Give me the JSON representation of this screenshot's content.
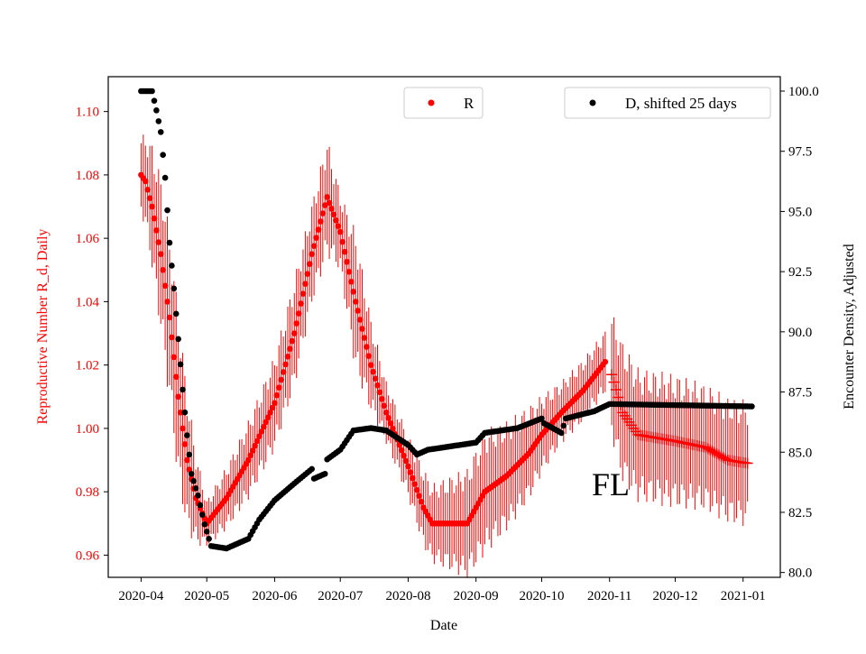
{
  "chart_data": {
    "type": "scatter",
    "title": "",
    "xlabel": "Date",
    "ylabel_left": "Reproductive Number R_d, Daily",
    "ylabel_right": "Encounter Density, Adjusted",
    "annotation": "FL",
    "x_ticks": [
      "2020-04",
      "2020-05",
      "2020-06",
      "2020-07",
      "2020-08",
      "2020-09",
      "2020-10",
      "2020-11",
      "2020-12",
      "2021-01"
    ],
    "y_left_ticks": [
      "0.96",
      "0.98",
      "1.00",
      "1.02",
      "1.04",
      "1.06",
      "1.08",
      "1.10"
    ],
    "y_right_ticks": [
      "80.0",
      "82.5",
      "85.0",
      "87.5",
      "90.0",
      "92.5",
      "95.0",
      "97.5",
      "100.0"
    ],
    "ylim_left": [
      0.953,
      1.111
    ],
    "ylim_right": [
      79.8,
      100.6
    ],
    "xlim": [
      "2020-03-17",
      "2021-01-18"
    ],
    "colors": {
      "R": "#ff0000",
      "D": "#000000",
      "left_axis": "#ff0000"
    },
    "legend": [
      {
        "label": "R",
        "color": "#ff0000",
        "placement": "top-center"
      },
      {
        "label": "D, shifted 25 days",
        "color": "#000000",
        "placement": "top-right"
      }
    ],
    "series": [
      {
        "name": "R",
        "axis": "left",
        "marker": "dot",
        "points": [
          [
            "2020-04-01",
            1.08,
            0.01
          ],
          [
            "2020-04-03",
            1.078,
            0.012
          ],
          [
            "2020-04-06",
            1.07,
            0.016
          ],
          [
            "2020-04-10",
            1.055,
            0.02
          ],
          [
            "2020-04-14",
            1.035,
            0.022
          ],
          [
            "2020-04-18",
            1.01,
            0.022
          ],
          [
            "2020-04-22",
            0.99,
            0.018
          ],
          [
            "2020-04-26",
            0.978,
            0.012
          ],
          [
            "2020-05-01",
            0.97,
            0.006
          ],
          [
            "2020-05-10",
            0.978,
            0.008
          ],
          [
            "2020-05-20",
            0.99,
            0.01
          ],
          [
            "2020-06-01",
            1.008,
            0.012
          ],
          [
            "2020-06-10",
            1.03,
            0.014
          ],
          [
            "2020-06-18",
            1.055,
            0.013
          ],
          [
            "2020-06-25",
            1.073,
            0.015
          ],
          [
            "2020-07-01",
            1.062,
            0.01
          ],
          [
            "2020-07-08",
            1.04,
            0.018
          ],
          [
            "2020-07-15",
            1.02,
            0.012
          ],
          [
            "2020-07-22",
            1.005,
            0.008
          ],
          [
            "2020-08-01",
            0.988,
            0.008
          ],
          [
            "2020-08-08",
            0.975,
            0.01
          ],
          [
            "2020-08-12",
            0.97,
            0.01
          ],
          [
            "2020-08-28",
            0.97,
            0.014
          ],
          [
            "2020-09-05",
            0.98,
            0.016
          ],
          [
            "2020-09-15",
            0.985,
            0.014
          ],
          [
            "2020-09-25",
            0.992,
            0.012
          ],
          [
            "2020-10-01",
            0.998,
            0.01
          ],
          [
            "2020-10-10",
            1.005,
            0.008
          ],
          [
            "2020-10-20",
            1.012,
            0.008
          ],
          [
            "2020-10-30",
            1.021,
            0.008
          ]
        ]
      },
      {
        "name": "R",
        "axis": "left",
        "marker": "plus",
        "points": [
          [
            "2020-11-02",
            1.017,
            0.016
          ],
          [
            "2020-11-07",
            1.005,
            0.018
          ],
          [
            "2020-11-14",
            0.998,
            0.017
          ],
          [
            "2020-12-01",
            0.996,
            0.017
          ],
          [
            "2020-12-15",
            0.994,
            0.016
          ],
          [
            "2020-12-25",
            0.99,
            0.016
          ],
          [
            "2021-01-03",
            0.989,
            0.016
          ]
        ]
      },
      {
        "name": "D, shifted 25 days",
        "axis": "right",
        "marker": "dot",
        "points": [
          [
            "2020-04-01",
            100.0
          ],
          [
            "2020-04-06",
            100.0
          ],
          [
            "2020-04-08",
            99.2
          ],
          [
            "2020-04-10",
            98.3
          ],
          [
            "2020-04-12",
            96.4
          ],
          [
            "2020-04-14",
            93.7
          ],
          [
            "2020-04-16",
            91.8
          ],
          [
            "2020-04-18",
            89.7
          ],
          [
            "2020-04-20",
            87.6
          ],
          [
            "2020-04-22",
            85.7
          ],
          [
            "2020-04-24",
            84.1
          ],
          [
            "2020-04-27",
            83.2
          ],
          [
            "2020-04-30",
            82.0
          ],
          [
            "2020-05-03",
            81.1
          ],
          [
            "2020-05-10",
            81.0
          ],
          [
            "2020-05-20",
            81.4
          ],
          [
            "2020-05-25",
            82.2
          ],
          [
            "2020-06-01",
            83.0
          ],
          [
            "2020-06-10",
            83.7
          ],
          [
            "2020-06-18",
            84.3
          ],
          [
            "2020-06-19",
            83.9
          ],
          [
            "2020-06-24",
            84.1
          ],
          [
            "2020-06-25",
            84.7
          ],
          [
            "2020-07-01",
            85.1
          ],
          [
            "2020-07-07",
            85.9
          ],
          [
            "2020-07-15",
            86.0
          ],
          [
            "2020-07-22",
            85.9
          ],
          [
            "2020-08-01",
            85.3
          ],
          [
            "2020-08-05",
            84.9
          ],
          [
            "2020-08-10",
            85.1
          ],
          [
            "2020-09-01",
            85.4
          ],
          [
            "2020-09-05",
            85.8
          ],
          [
            "2020-09-20",
            86.0
          ],
          [
            "2020-10-01",
            86.4
          ],
          [
            "2020-10-02",
            86.2
          ],
          [
            "2020-10-10",
            85.8
          ],
          [
            "2020-10-12",
            86.4
          ],
          [
            "2020-10-25",
            86.7
          ],
          [
            "2020-11-01",
            87.0
          ],
          [
            "2021-01-05",
            86.9
          ]
        ]
      }
    ]
  }
}
